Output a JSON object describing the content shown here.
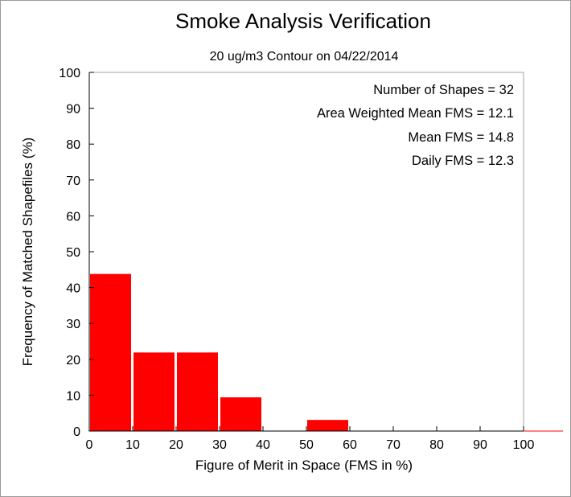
{
  "chart_data": {
    "type": "bar",
    "title": "Smoke Analysis Verification",
    "subtitle": "20 ug/m3 Contour on 04/22/2014",
    "xlabel": "Figure of Merit in Space (FMS in %)",
    "ylabel": "Frequency of Matched Shapefiles (%)",
    "xlim": [
      0,
      100
    ],
    "ylim": [
      0,
      100
    ],
    "xticks": [
      "0",
      "10",
      "20",
      "30",
      "40",
      "50",
      "60",
      "70",
      "80",
      "90",
      "100"
    ],
    "yticks": [
      "0",
      "10",
      "20",
      "30",
      "40",
      "50",
      "60",
      "70",
      "80",
      "90",
      "100"
    ],
    "bins": [
      [
        0,
        10
      ],
      [
        10,
        20
      ],
      [
        20,
        30
      ],
      [
        30,
        40
      ],
      [
        40,
        50
      ],
      [
        50,
        60
      ],
      [
        60,
        70
      ],
      [
        70,
        80
      ],
      [
        80,
        90
      ],
      [
        90,
        100
      ]
    ],
    "values": [
      43.8,
      21.9,
      21.9,
      9.4,
      0,
      3.1,
      0,
      0,
      0,
      0
    ],
    "bar_color": "#ff0000",
    "grid": false,
    "annotations": [
      "Number of Shapes = 32",
      "Area Weighted Mean FMS = 12.1",
      "Mean FMS = 14.8",
      "Daily FMS = 12.3"
    ]
  }
}
